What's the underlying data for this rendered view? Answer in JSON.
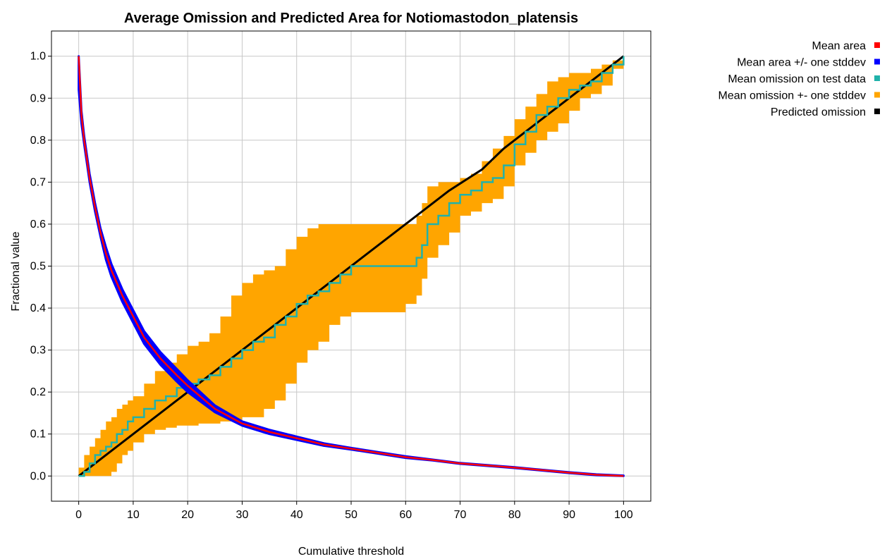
{
  "chart_data": {
    "type": "line",
    "title": "Average Omission and Predicted Area for Notiomastodon_platensis",
    "xlabel": "Cumulative threshold",
    "ylabel": "Fractional value",
    "xlim": [
      -5,
      105
    ],
    "ylim": [
      -0.06,
      1.06
    ],
    "x_ticks": [
      0,
      10,
      20,
      30,
      40,
      50,
      60,
      70,
      80,
      90,
      100
    ],
    "x_tick_labels": [
      "0",
      "10",
      "20",
      "30",
      "40",
      "50",
      "60",
      "70",
      "80",
      "90",
      "100"
    ],
    "y_ticks": [
      0.0,
      0.1,
      0.2,
      0.3,
      0.4,
      0.5,
      0.6,
      0.7,
      0.8,
      0.9,
      1.0
    ],
    "y_tick_labels": [
      "0.0",
      "0.1",
      "0.2",
      "0.3",
      "0.4",
      "0.5",
      "0.6",
      "0.7",
      "0.8",
      "0.9",
      "1.0"
    ],
    "grid": true,
    "legend_position": "right",
    "legend": [
      {
        "label": "Mean area",
        "color": "#ff0000"
      },
      {
        "label": "Mean area +/- one stddev",
        "color": "#0000ff"
      },
      {
        "label": "Mean omission on test data",
        "color": "#20b2aa"
      },
      {
        "label": "Mean omission +- one stddev",
        "color": "#ffa500"
      },
      {
        "label": "Predicted omission",
        "color": "#000000"
      }
    ],
    "series": [
      {
        "name": "Mean area",
        "color": "#ff0000",
        "x": [
          0,
          0.5,
          1,
          2,
          3,
          4,
          5,
          6,
          8,
          10,
          12,
          15,
          18,
          20,
          25,
          30,
          35,
          40,
          45,
          50,
          55,
          60,
          65,
          70,
          75,
          80,
          85,
          90,
          95,
          100
        ],
        "y": [
          1.0,
          0.86,
          0.8,
          0.71,
          0.64,
          0.58,
          0.53,
          0.49,
          0.43,
          0.38,
          0.33,
          0.28,
          0.24,
          0.215,
          0.16,
          0.125,
          0.105,
          0.09,
          0.075,
          0.065,
          0.055,
          0.045,
          0.038,
          0.03,
          0.025,
          0.02,
          0.014,
          0.008,
          0.003,
          0.0
        ]
      },
      {
        "name": "Mean area +/- one stddev",
        "color": "#0000ff",
        "x": [
          0,
          0.5,
          1,
          2,
          3,
          4,
          5,
          6,
          8,
          10,
          12,
          15,
          18,
          20,
          25,
          30,
          35,
          40,
          45,
          50,
          55,
          60,
          65,
          70,
          75,
          80,
          85,
          90,
          95,
          100
        ],
        "upper": [
          1.0,
          0.87,
          0.81,
          0.72,
          0.65,
          0.59,
          0.545,
          0.505,
          0.445,
          0.395,
          0.345,
          0.295,
          0.255,
          0.228,
          0.168,
          0.13,
          0.11,
          0.094,
          0.078,
          0.067,
          0.057,
          0.047,
          0.039,
          0.031,
          0.026,
          0.021,
          0.015,
          0.009,
          0.004,
          0.001
        ],
        "lower": [
          0.92,
          0.84,
          0.79,
          0.7,
          0.63,
          0.57,
          0.515,
          0.475,
          0.415,
          0.365,
          0.315,
          0.265,
          0.225,
          0.2,
          0.152,
          0.12,
          0.1,
          0.086,
          0.072,
          0.063,
          0.053,
          0.043,
          0.037,
          0.029,
          0.024,
          0.019,
          0.013,
          0.007,
          0.002,
          0.0
        ]
      },
      {
        "name": "Mean omission on test data",
        "color": "#20b2aa",
        "x": [
          0,
          1,
          2,
          3,
          4,
          5,
          6,
          7,
          8,
          9,
          10,
          12,
          14,
          16,
          18,
          20,
          22,
          24,
          26,
          28,
          30,
          32,
          34,
          36,
          38,
          40,
          42,
          44,
          46,
          48,
          50,
          52,
          54,
          56,
          58,
          60,
          62,
          63,
          64,
          66,
          68,
          70,
          72,
          74,
          76,
          78,
          80,
          82,
          84,
          86,
          88,
          90,
          92,
          94,
          96,
          98,
          100
        ],
        "y": [
          0.0,
          0.01,
          0.03,
          0.05,
          0.06,
          0.07,
          0.08,
          0.1,
          0.11,
          0.13,
          0.14,
          0.16,
          0.18,
          0.19,
          0.21,
          0.22,
          0.23,
          0.24,
          0.26,
          0.28,
          0.3,
          0.32,
          0.33,
          0.36,
          0.38,
          0.41,
          0.43,
          0.44,
          0.46,
          0.48,
          0.5,
          0.5,
          0.5,
          0.5,
          0.5,
          0.5,
          0.52,
          0.55,
          0.6,
          0.62,
          0.65,
          0.67,
          0.68,
          0.7,
          0.71,
          0.74,
          0.79,
          0.82,
          0.86,
          0.88,
          0.9,
          0.92,
          0.93,
          0.94,
          0.96,
          0.98,
          1.0
        ]
      },
      {
        "name": "Mean omission +- one stddev",
        "color": "#ffa500",
        "x": [
          0,
          1,
          2,
          3,
          4,
          5,
          6,
          7,
          8,
          9,
          10,
          12,
          14,
          16,
          18,
          20,
          22,
          24,
          26,
          28,
          30,
          32,
          34,
          36,
          38,
          40,
          42,
          44,
          46,
          48,
          50,
          52,
          54,
          56,
          58,
          60,
          62,
          63,
          64,
          66,
          68,
          70,
          72,
          74,
          76,
          78,
          80,
          82,
          84,
          86,
          88,
          90,
          92,
          94,
          96,
          98,
          100
        ],
        "upper": [
          0.02,
          0.05,
          0.07,
          0.09,
          0.11,
          0.13,
          0.14,
          0.16,
          0.17,
          0.18,
          0.19,
          0.22,
          0.25,
          0.27,
          0.29,
          0.31,
          0.32,
          0.34,
          0.38,
          0.43,
          0.46,
          0.48,
          0.49,
          0.5,
          0.54,
          0.57,
          0.59,
          0.6,
          0.6,
          0.6,
          0.6,
          0.6,
          0.6,
          0.6,
          0.6,
          0.6,
          0.62,
          0.65,
          0.69,
          0.7,
          0.7,
          0.71,
          0.72,
          0.75,
          0.78,
          0.81,
          0.85,
          0.88,
          0.91,
          0.94,
          0.95,
          0.96,
          0.96,
          0.97,
          0.98,
          0.99,
          1.0
        ]
      },
      {
        "name": "Mean omission +- one stddev lower",
        "color": "#ffa500",
        "x": [
          0,
          1,
          2,
          3,
          4,
          5,
          6,
          7,
          8,
          9,
          10,
          12,
          14,
          16,
          18,
          20,
          22,
          24,
          26,
          28,
          30,
          32,
          34,
          36,
          38,
          40,
          42,
          44,
          46,
          48,
          50,
          52,
          54,
          56,
          58,
          60,
          62,
          63,
          64,
          66,
          68,
          70,
          72,
          74,
          76,
          78,
          80,
          82,
          84,
          86,
          88,
          90,
          92,
          94,
          96,
          98,
          100
        ],
        "lower": [
          0.0,
          0.0,
          0.0,
          0.0,
          0.0,
          0.0,
          0.01,
          0.03,
          0.05,
          0.06,
          0.08,
          0.1,
          0.11,
          0.115,
          0.12,
          0.12,
          0.125,
          0.125,
          0.13,
          0.13,
          0.14,
          0.14,
          0.16,
          0.18,
          0.22,
          0.27,
          0.3,
          0.32,
          0.36,
          0.38,
          0.39,
          0.39,
          0.39,
          0.39,
          0.39,
          0.41,
          0.43,
          0.47,
          0.52,
          0.55,
          0.58,
          0.62,
          0.63,
          0.65,
          0.66,
          0.69,
          0.74,
          0.77,
          0.8,
          0.82,
          0.84,
          0.87,
          0.9,
          0.91,
          0.93,
          0.97,
          0.98
        ]
      },
      {
        "name": "Predicted omission",
        "color": "#000000",
        "x": [
          0,
          62,
          68,
          74,
          78,
          100
        ],
        "y": [
          0.0,
          0.62,
          0.68,
          0.73,
          0.78,
          1.0
        ]
      }
    ]
  }
}
